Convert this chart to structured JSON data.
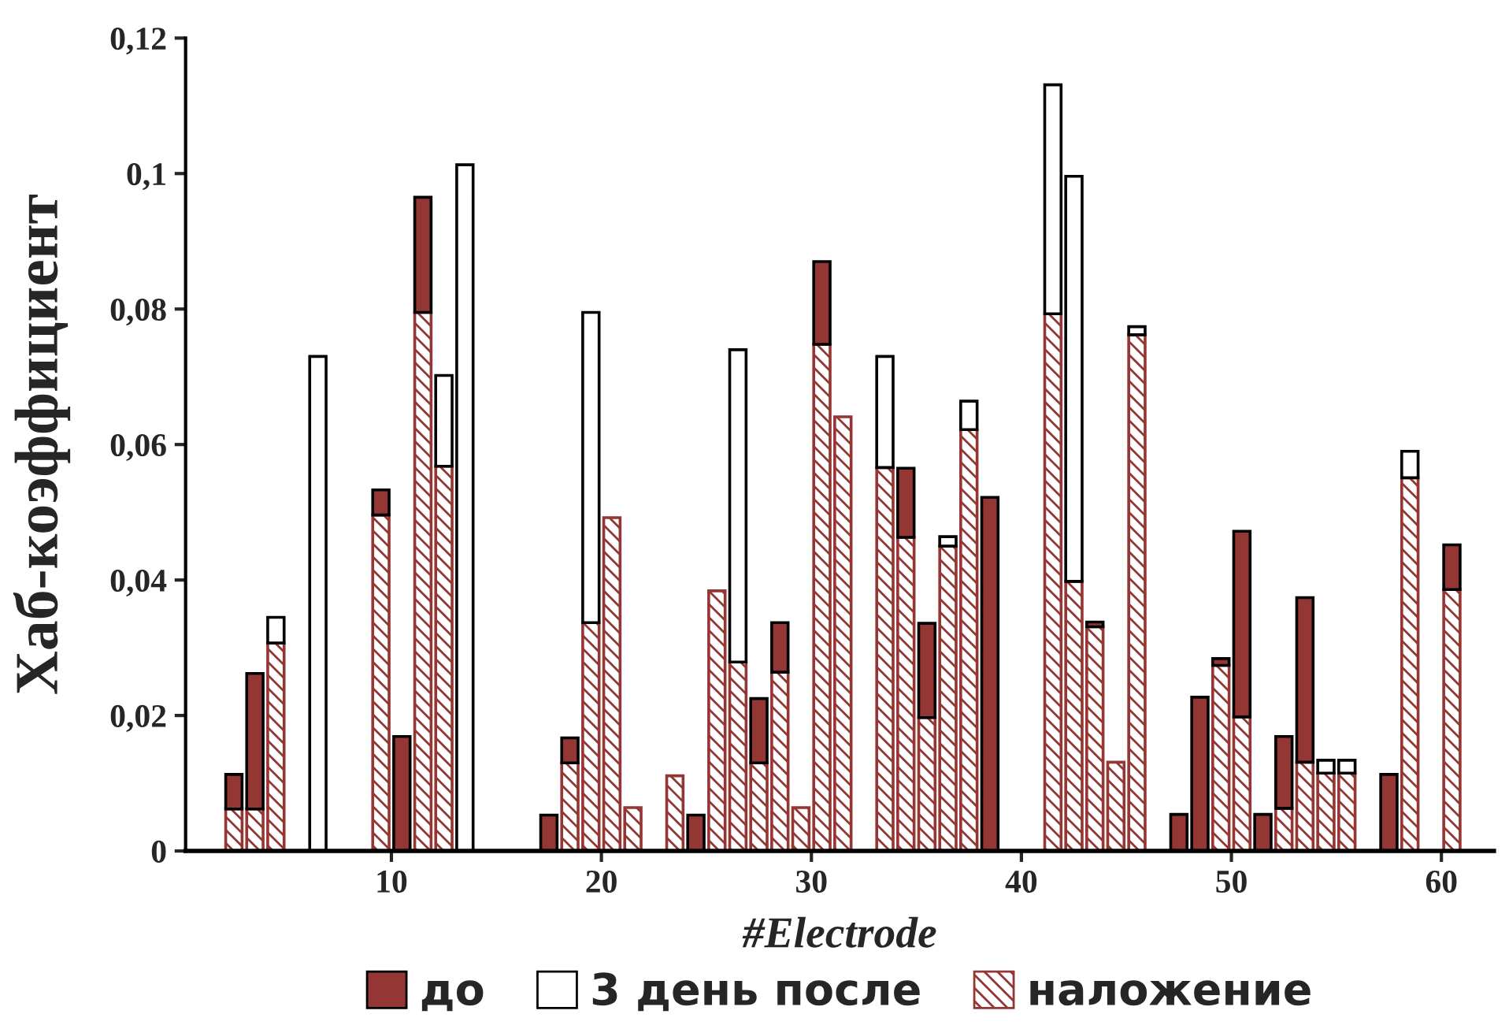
{
  "chart_data": {
    "type": "bar",
    "stacked": true,
    "xlabel": "#Electrode",
    "ylabel": "Хаб-коэффициент",
    "x": [
      2,
      3,
      4,
      6,
      9,
      10,
      11,
      12,
      13,
      17,
      18,
      19,
      20,
      21,
      23,
      24,
      25,
      26,
      27,
      28,
      29,
      30,
      31,
      33,
      34,
      35,
      36,
      37,
      38,
      41,
      42,
      43,
      44,
      45,
      47,
      48,
      49,
      50,
      51,
      52,
      53,
      54,
      55,
      57,
      58,
      60
    ],
    "series": [
      {
        "name": "наложение",
        "color": "#943634",
        "values": [
          0.0062,
          0.0062,
          0.0307,
          null,
          0.0496,
          null,
          0.0795,
          0.0568,
          null,
          null,
          0.013,
          0.0337,
          0.0492,
          0.0064,
          0.0111,
          null,
          0.0384,
          0.0279,
          0.013,
          0.0264,
          0.0064,
          0.0748,
          0.0641,
          0.0566,
          0.0463,
          0.0197,
          0.045,
          0.0622,
          null,
          0.0793,
          0.0398,
          0.0331,
          0.0131,
          0.0762,
          null,
          null,
          0.0274,
          0.0198,
          null,
          0.0063,
          0.0131,
          0.0115,
          0.0115,
          null,
          0.0551,
          0.0386
        ]
      },
      {
        "name": "до",
        "color": "#943634",
        "values": [
          0.0051,
          0.02,
          null,
          null,
          0.0037,
          0.0169,
          0.017,
          null,
          null,
          0.0053,
          0.0037,
          null,
          null,
          null,
          null,
          0.0053,
          null,
          null,
          0.0095,
          0.0073,
          null,
          0.0122,
          null,
          null,
          0.0102,
          0.0139,
          null,
          null,
          0.0522,
          null,
          null,
          0.0007,
          null,
          null,
          0.0054,
          0.0227,
          0.001,
          0.0274,
          0.0054,
          0.0106,
          0.0243,
          null,
          null,
          0.0113,
          null,
          0.0066
        ]
      },
      {
        "name": "3 день после",
        "color": "#ffffff",
        "values": [
          null,
          null,
          0.0038,
          0.073,
          null,
          null,
          null,
          0.0134,
          0.1013,
          null,
          null,
          0.0458,
          null,
          null,
          null,
          null,
          null,
          0.0461,
          null,
          null,
          null,
          null,
          null,
          0.0164,
          null,
          null,
          0.0014,
          0.0042,
          null,
          0.0338,
          0.0598,
          null,
          null,
          0.0012,
          null,
          null,
          null,
          null,
          null,
          null,
          null,
          0.0019,
          0.0019,
          null,
          0.0039,
          null
        ]
      }
    ],
    "xlim": [
      -0.3,
      62
    ],
    "xticks": [
      {
        "value": 9.5,
        "label": "10"
      },
      {
        "value": 19.5,
        "label": "20"
      },
      {
        "value": 29.5,
        "label": "30"
      },
      {
        "value": 39.5,
        "label": "40"
      },
      {
        "value": 49.5,
        "label": "50"
      },
      {
        "value": 59.5,
        "label": "60"
      }
    ],
    "ylim": [
      0,
      0.12
    ],
    "yticks": [
      0,
      {
        "value": 0.02,
        "label": "0,02"
      },
      {
        "value": 0.04,
        "label": "0,04"
      },
      {
        "value": 0.06,
        "label": "0,06"
      },
      {
        "value": 0.08,
        "label": "0,08"
      },
      {
        "value": 0.1,
        "label": "0,1"
      },
      {
        "value": 0.12,
        "label": "0,12"
      }
    ],
    "grid": false,
    "legend": "bottom"
  }
}
